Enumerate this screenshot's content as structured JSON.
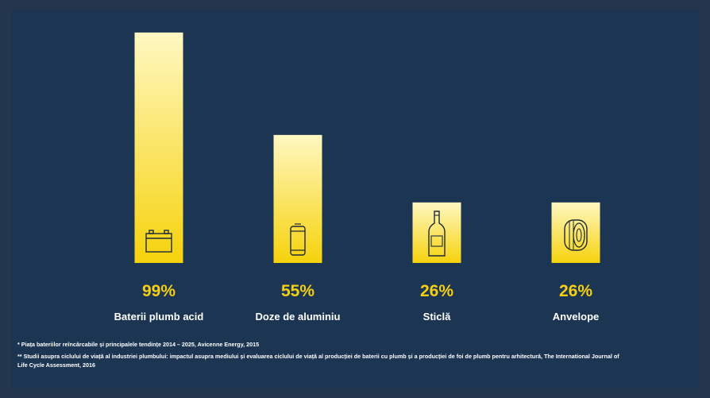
{
  "colors": {
    "background": "#1b3552",
    "bar_top": "#fff8c2",
    "bar_bottom": "#f6d20c",
    "accent": "#f5cf15",
    "icon": "#1d2a38"
  },
  "chart_data": {
    "type": "bar",
    "categories": [
      "Baterii plumb acid",
      "Doze de aluminiu",
      "Sticlă",
      "Anvelope"
    ],
    "values": [
      99,
      55,
      26,
      26
    ],
    "value_labels": [
      "99%",
      "55%",
      "26%",
      "26%"
    ],
    "icons": [
      "battery-icon",
      "can-icon",
      "bottle-icon",
      "tire-icon"
    ],
    "title": "",
    "xlabel": "",
    "ylabel": "",
    "ylim": [
      0,
      100
    ],
    "grid": false,
    "legend": "none"
  },
  "footnotes": {
    "note1": "*   Piața bateriilor reîncărcabile și principalele tendințe 2014 – 2025, Avicenne Energy, 2015",
    "note2": "** Studii asupra ciclului de viață al industriei plumbului: impactul asupra mediului și evaluarea ciclului de viață al producției de baterii cu plumb și a producției de foi de plumb pentru arhitectură, The International Journal of Life Cycle Assessment, 2016"
  }
}
